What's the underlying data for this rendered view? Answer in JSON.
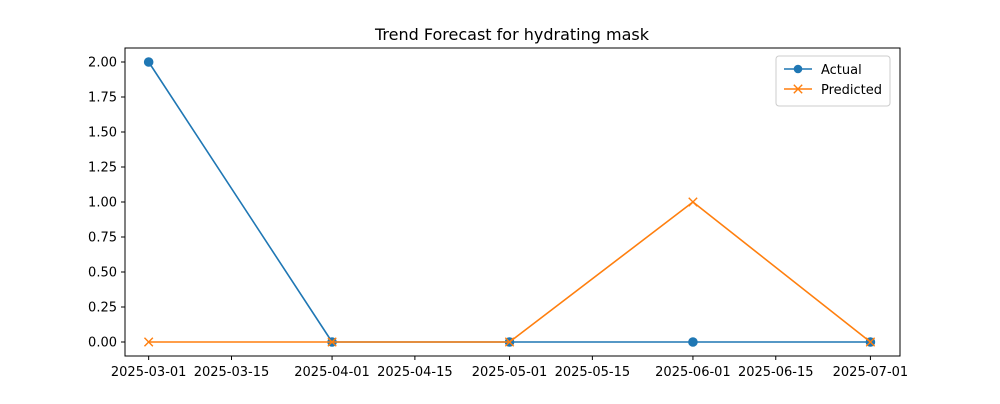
{
  "chart_data": {
    "type": "line",
    "title": "Trend Forecast for hydrating mask",
    "xlabel": "",
    "ylabel": "",
    "x": [
      "2025-03-01",
      "2025-04-01",
      "2025-05-01",
      "2025-06-01",
      "2025-07-01"
    ],
    "xlim": [
      "2025-02-25",
      "2025-07-06"
    ],
    "ylim": [
      -0.1,
      2.1
    ],
    "x_ticks": [
      "2025-03-01",
      "2025-03-15",
      "2025-04-01",
      "2025-04-15",
      "2025-05-01",
      "2025-05-15",
      "2025-06-01",
      "2025-06-15",
      "2025-07-01"
    ],
    "y_ticks": [
      0.0,
      0.25,
      0.5,
      0.75,
      1.0,
      1.25,
      1.5,
      1.75,
      2.0
    ],
    "y_tick_labels": [
      "0.00",
      "0.25",
      "0.50",
      "0.75",
      "1.00",
      "1.25",
      "1.50",
      "1.75",
      "2.00"
    ],
    "grid": false,
    "legend_position": "top-right",
    "series": [
      {
        "name": "Actual",
        "values": [
          2,
          0,
          0,
          0,
          0
        ],
        "color": "#1f77b4",
        "marker": "circle"
      },
      {
        "name": "Predicted",
        "values": [
          0,
          0,
          0,
          1,
          0
        ],
        "color": "#ff7f0e",
        "marker": "x"
      }
    ]
  }
}
